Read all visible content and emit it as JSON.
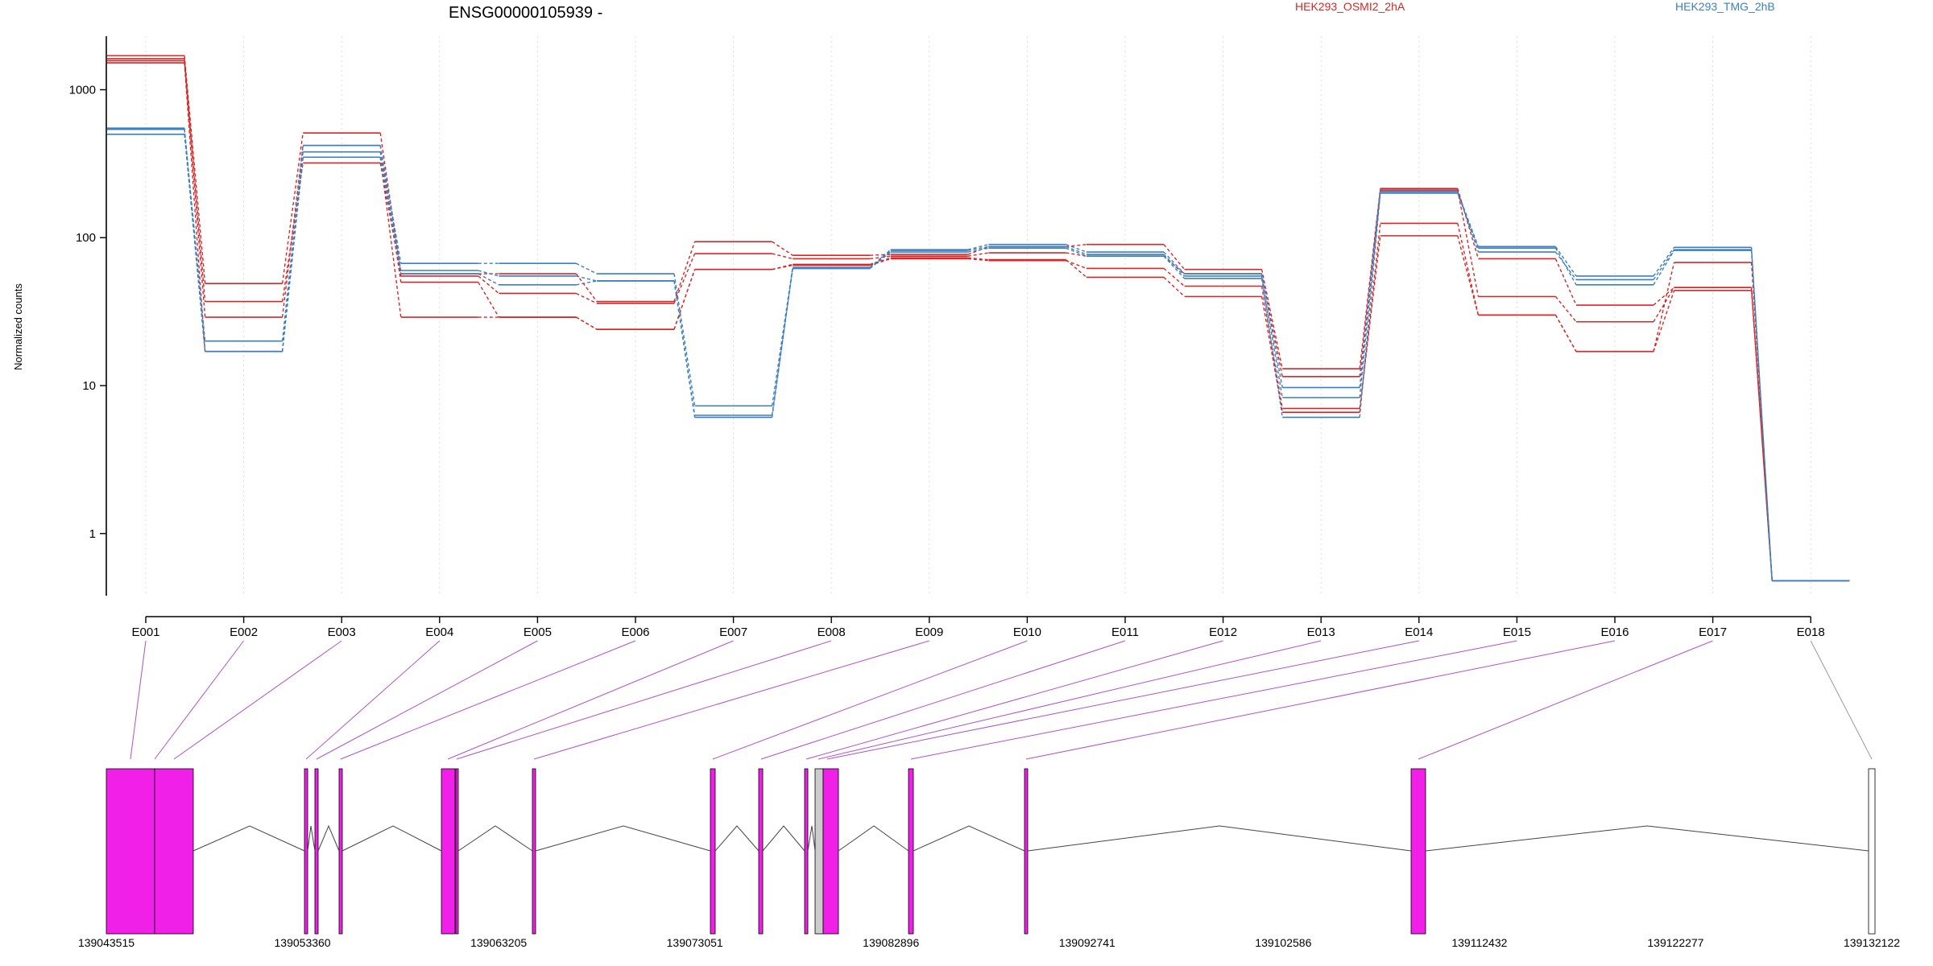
{
  "chart_data": {
    "type": "line",
    "title": "ENSG00000105939 -",
    "ylabel": "Normalized counts",
    "xlabel": "",
    "yscale": "log",
    "ylim": [
      0.38,
      2300
    ],
    "yticks": [
      1,
      10,
      100,
      1000
    ],
    "ytick_labels": [
      "1",
      "10",
      "100",
      "1000"
    ],
    "grid": "vertical dotted at exon centers",
    "legend_position": "top",
    "categories": [
      "E001",
      "E002",
      "E003",
      "E004",
      "E005",
      "E006",
      "E007",
      "E008",
      "E009",
      "E010",
      "E011",
      "E012",
      "E013",
      "E014",
      "E015",
      "E016",
      "E017",
      "E018"
    ],
    "groups": [
      {
        "name": "HEK293_OSMI2_2hA",
        "color": "#d62728"
      },
      {
        "name": "HEK293_TMG_2hB",
        "color": "#3a7fc0"
      }
    ],
    "series": [
      {
        "group": 0,
        "values": [
          1700,
          49,
          510,
          57,
          57,
          37,
          94,
          76,
          77,
          87,
          90,
          61,
          13,
          215,
          72,
          35,
          46,
          0.48
        ]
      },
      {
        "group": 0,
        "values": [
          1620,
          37,
          320,
          55,
          42,
          36,
          78,
          72,
          75,
          79,
          75,
          57,
          11.5,
          210,
          40,
          27,
          46,
          0.48
        ]
      },
      {
        "group": 0,
        "values": [
          1570,
          29,
          420,
          50,
          29,
          24,
          61,
          66,
          73,
          71,
          54,
          40,
          6.6,
          125,
          30,
          17,
          68,
          0.48
        ]
      },
      {
        "group": 0,
        "values": [
          1520,
          17,
          350,
          29,
          29,
          24,
          61,
          65,
          72,
          70,
          62,
          47,
          7,
          103,
          30,
          17,
          44,
          0.48
        ]
      },
      {
        "group": 1,
        "values": [
          540,
          20,
          420,
          67,
          67,
          57,
          7.3,
          63,
          83,
          90,
          80,
          57,
          9.7,
          205,
          87,
          55,
          86,
          0.48
        ]
      },
      {
        "group": 1,
        "values": [
          550,
          17,
          380,
          60,
          55,
          51,
          6.3,
          62,
          82,
          87,
          77,
          55,
          8.3,
          205,
          80,
          52,
          83,
          0.48
        ]
      },
      {
        "group": 1,
        "values": [
          500,
          17,
          350,
          57,
          48,
          51,
          6.1,
          62,
          80,
          85,
          75,
          53,
          6.1,
          200,
          85,
          48,
          82,
          0.48
        ]
      }
    ],
    "gene_model": {
      "coordinate_labels": [
        "139043515",
        "139053360",
        "139063205",
        "139073051",
        "139082896",
        "139092741",
        "139102586",
        "139112432",
        "139122277",
        "139132122"
      ],
      "exon_color": "#f020e8",
      "excluded_exon_color": "#cccccc",
      "noncounted_exon_color": "#ffffff"
    }
  }
}
